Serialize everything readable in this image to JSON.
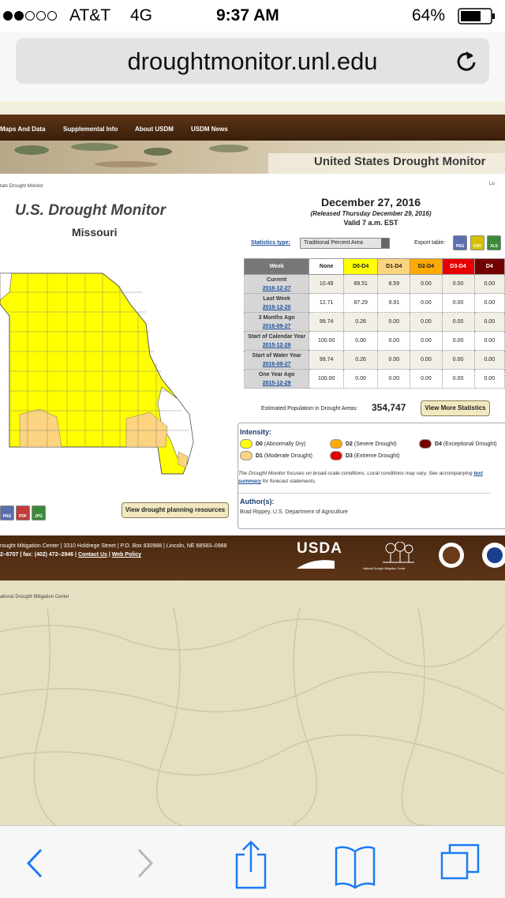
{
  "status_bar": {
    "carrier": "AT&T",
    "network": "4G",
    "time": "9:37 AM",
    "battery": "64%"
  },
  "browser": {
    "url": "droughtmonitor.unl.edu"
  },
  "nav": {
    "items": [
      "Maps And Data",
      "Supplemental Info",
      "About USDM",
      "USDM News"
    ]
  },
  "banner": {
    "title": "United States Drought Monitor"
  },
  "breadcrumb": "tate Drought Monitor",
  "login": "Lo",
  "map": {
    "title": "U.S. Drought Monitor",
    "region": "Missouri",
    "downloads": [
      "PNG",
      "PDF",
      "JPG"
    ],
    "planning_button": "View drought planning resources"
  },
  "report": {
    "date": "December 27, 2016",
    "released": "(Released Thursday December 29, 2016)",
    "valid": "Valid 7 a.m. EST"
  },
  "statistics": {
    "type_label": "Statistics type:",
    "type_value": "Traditional Percent Area",
    "export_label": "Export table:",
    "export_formats": [
      "PNG",
      "CSV",
      "XLS"
    ]
  },
  "table": {
    "columns": [
      "Week",
      "None",
      "D0-D4",
      "D1-D4",
      "D2-D4",
      "D3-D4",
      "D4"
    ],
    "rows": [
      {
        "week": "Current",
        "date": "2016-12-27",
        "values": [
          "10.49",
          "89.51",
          "8.59",
          "0.00",
          "0.00",
          "0.00"
        ]
      },
      {
        "week": "Last Week",
        "date": "2016-12-20",
        "values": [
          "12.71",
          "87.29",
          "9.91",
          "0.00",
          "0.00",
          "0.00"
        ]
      },
      {
        "week": "3 Months Ago",
        "date": "2016-09-27",
        "values": [
          "99.74",
          "0.26",
          "0.00",
          "0.00",
          "0.00",
          "0.00"
        ]
      },
      {
        "week": "Start of Calendar Year",
        "date": "2015-12-29",
        "values": [
          "100.00",
          "0.00",
          "0.00",
          "0.00",
          "0.00",
          "0.00"
        ]
      },
      {
        "week": "Start of Water Year",
        "date": "2016-09-27",
        "values": [
          "99.74",
          "0.26",
          "0.00",
          "0.00",
          "0.00",
          "0.00"
        ]
      },
      {
        "week": "One Year Ago",
        "date": "2015-12-29",
        "values": [
          "100.00",
          "0.00",
          "0.00",
          "0.00",
          "0.00",
          "0.00"
        ]
      }
    ]
  },
  "population": {
    "label": "Estimated Population in Drought Areas:",
    "value": "354,747",
    "button": "View More Statistics"
  },
  "legend": {
    "title": "Intensity:",
    "items": [
      {
        "code": "D0",
        "label": "(Abnormally Dry)",
        "color": "#ffff00"
      },
      {
        "code": "D1",
        "label": "(Moderate Drought)",
        "color": "#fcd37f"
      },
      {
        "code": "D2",
        "label": "(Severe Drought)",
        "color": "#ffaa00"
      },
      {
        "code": "D3",
        "label": "(Extreme Drought)",
        "color": "#e60000"
      },
      {
        "code": "D4",
        "label": "(Exceptional Drought)",
        "color": "#730000"
      }
    ]
  },
  "note": {
    "before": "The Drought Monitor focuses on broad-scale conditions. Local conditions may vary. See accompanying",
    "link": "text summary",
    "after": "for forecast statements."
  },
  "authors": {
    "title": "Author(s):",
    "name": "Brad Rippey, U.S. Department of Agriculture"
  },
  "footer": {
    "address": "rought Mitigation Center | 3310 Holdrege Street | P.O. Box 830988 | Lincoln, NE 68583–0988",
    "separator": "|",
    "phone": "2–6707",
    "fax": "fax: (402) 472–2946",
    "links": [
      "Contact Us",
      "Web Policy"
    ],
    "usda": "USDA",
    "ndmc": "National Drought Mitigation Center"
  },
  "copyright": "ational Drought Mitigation Center"
}
